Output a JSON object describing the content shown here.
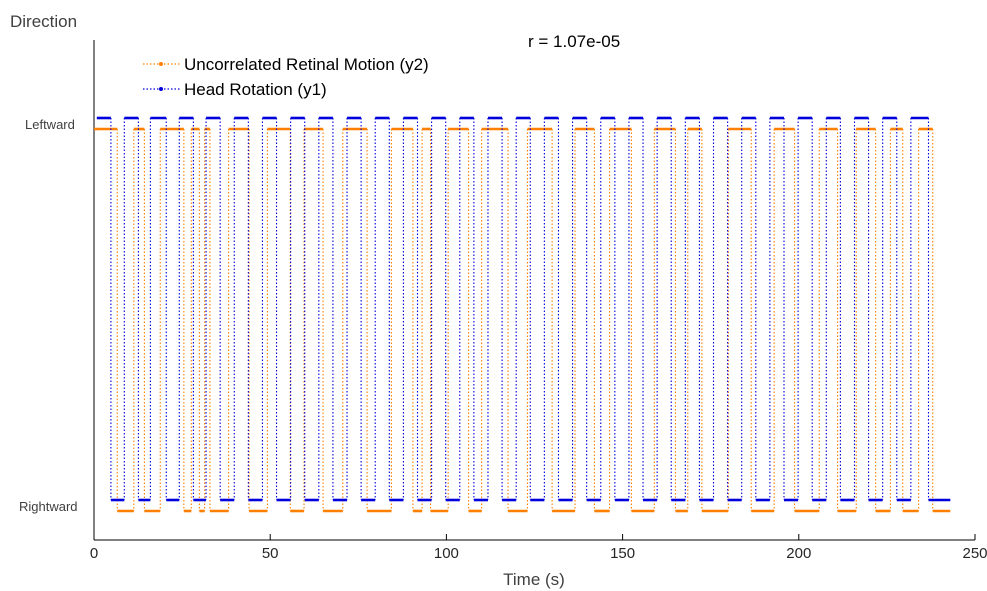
{
  "chart_data": {
    "type": "line",
    "title": "",
    "annotation": "r = 1.07e-05",
    "xlabel": "Time (s)",
    "ylabel": "Direction",
    "xlim": [
      0,
      250
    ],
    "x_ticks": [
      0,
      50,
      100,
      150,
      200,
      250
    ],
    "y_categories": [
      "Rightward",
      "Leftward"
    ],
    "grid": false,
    "legend_position": "top-left",
    "colors": {
      "y1": "#0000dd",
      "y2": "#ff8000"
    },
    "series": [
      {
        "name": "Uncorrelated Retinal Motion (y2)",
        "key": "y2",
        "segments": [
          [
            0,
            1.3,
            "L"
          ],
          [
            1.3,
            6.6,
            "L"
          ],
          [
            6.6,
            11.3,
            "R"
          ],
          [
            11.3,
            14.3,
            "L"
          ],
          [
            14.3,
            18.8,
            "R"
          ],
          [
            18.8,
            25.5,
            "L"
          ],
          [
            25.5,
            27.6,
            "R"
          ],
          [
            27.6,
            29.9,
            "L"
          ],
          [
            29.9,
            31.4,
            "R"
          ],
          [
            31.4,
            32.9,
            "L"
          ],
          [
            32.9,
            38.2,
            "R"
          ],
          [
            38.2,
            44.0,
            "L"
          ],
          [
            44.0,
            49.2,
            "R"
          ],
          [
            49.2,
            55.7,
            "L"
          ],
          [
            55.7,
            59.6,
            "R"
          ],
          [
            59.6,
            65.0,
            "L"
          ],
          [
            65.0,
            70.6,
            "R"
          ],
          [
            70.6,
            77.5,
            "L"
          ],
          [
            77.5,
            84.4,
            "R"
          ],
          [
            84.4,
            90.5,
            "L"
          ],
          [
            90.5,
            93.1,
            "R"
          ],
          [
            93.1,
            95.5,
            "L"
          ],
          [
            95.5,
            100.5,
            "R"
          ],
          [
            100.5,
            106.3,
            "L"
          ],
          [
            106.3,
            110.0,
            "R"
          ],
          [
            110.0,
            117.5,
            "L"
          ],
          [
            117.5,
            123.0,
            "R"
          ],
          [
            123.0,
            130.0,
            "L"
          ],
          [
            130.0,
            136.5,
            "R"
          ],
          [
            136.5,
            142.0,
            "L"
          ],
          [
            142.0,
            146.3,
            "R"
          ],
          [
            146.3,
            152.5,
            "L"
          ],
          [
            152.5,
            159.0,
            "R"
          ],
          [
            159.0,
            165.0,
            "L"
          ],
          [
            165.0,
            168.5,
            "R"
          ],
          [
            168.5,
            172.5,
            "L"
          ],
          [
            172.5,
            180.0,
            "R"
          ],
          [
            180.0,
            186.5,
            "L"
          ],
          [
            186.5,
            193.0,
            "R"
          ],
          [
            193.0,
            198.8,
            "L"
          ],
          [
            198.8,
            205.8,
            "R"
          ],
          [
            205.8,
            211.0,
            "L"
          ],
          [
            211.0,
            216.3,
            "R"
          ],
          [
            216.3,
            221.8,
            "L"
          ],
          [
            221.8,
            226.0,
            "R"
          ],
          [
            226.0,
            229.5,
            "L"
          ],
          [
            229.5,
            234.0,
            "R"
          ],
          [
            234.0,
            238.0,
            "L"
          ],
          [
            238.0,
            243.0,
            "R"
          ]
        ]
      },
      {
        "name": "Head Rotation (y1)",
        "key": "y1",
        "segments": [
          [
            0.8,
            4.8,
            "L"
          ],
          [
            4.8,
            8.6,
            "R"
          ],
          [
            8.6,
            12.6,
            "L"
          ],
          [
            12.6,
            16.0,
            "R"
          ],
          [
            16.0,
            20.5,
            "L"
          ],
          [
            20.5,
            24.2,
            "R"
          ],
          [
            24.2,
            28.2,
            "L"
          ],
          [
            28.2,
            31.8,
            "R"
          ],
          [
            31.8,
            35.8,
            "L"
          ],
          [
            35.8,
            39.8,
            "R"
          ],
          [
            39.8,
            43.8,
            "L"
          ],
          [
            43.8,
            47.8,
            "R"
          ],
          [
            47.8,
            51.8,
            "L"
          ],
          [
            51.8,
            55.8,
            "R"
          ],
          [
            55.8,
            59.8,
            "L"
          ],
          [
            59.8,
            63.8,
            "R"
          ],
          [
            63.8,
            67.8,
            "L"
          ],
          [
            67.8,
            71.8,
            "R"
          ],
          [
            71.8,
            75.8,
            "L"
          ],
          [
            75.8,
            79.8,
            "R"
          ],
          [
            79.8,
            83.8,
            "L"
          ],
          [
            83.8,
            87.8,
            "R"
          ],
          [
            87.8,
            91.8,
            "L"
          ],
          [
            91.8,
            95.8,
            "R"
          ],
          [
            95.8,
            99.8,
            "L"
          ],
          [
            99.8,
            103.8,
            "R"
          ],
          [
            103.8,
            107.8,
            "L"
          ],
          [
            107.8,
            111.8,
            "R"
          ],
          [
            111.8,
            115.8,
            "L"
          ],
          [
            115.8,
            119.8,
            "R"
          ],
          [
            119.8,
            123.8,
            "L"
          ],
          [
            123.8,
            127.8,
            "R"
          ],
          [
            127.8,
            131.8,
            "L"
          ],
          [
            131.8,
            135.8,
            "R"
          ],
          [
            135.8,
            139.8,
            "L"
          ],
          [
            139.8,
            143.8,
            "R"
          ],
          [
            143.8,
            147.8,
            "L"
          ],
          [
            147.8,
            151.8,
            "R"
          ],
          [
            151.8,
            155.8,
            "L"
          ],
          [
            155.8,
            159.8,
            "R"
          ],
          [
            159.8,
            163.8,
            "L"
          ],
          [
            163.8,
            167.8,
            "R"
          ],
          [
            167.8,
            171.8,
            "L"
          ],
          [
            171.8,
            175.8,
            "R"
          ],
          [
            175.8,
            179.8,
            "L"
          ],
          [
            179.8,
            183.8,
            "R"
          ],
          [
            183.8,
            187.8,
            "L"
          ],
          [
            187.8,
            191.8,
            "R"
          ],
          [
            191.8,
            195.8,
            "L"
          ],
          [
            195.8,
            199.8,
            "R"
          ],
          [
            199.8,
            203.8,
            "L"
          ],
          [
            203.8,
            207.8,
            "R"
          ],
          [
            207.8,
            211.8,
            "L"
          ],
          [
            211.8,
            215.8,
            "R"
          ],
          [
            215.8,
            219.8,
            "L"
          ],
          [
            219.8,
            223.8,
            "R"
          ],
          [
            223.8,
            227.8,
            "L"
          ],
          [
            227.8,
            231.8,
            "R"
          ],
          [
            231.8,
            236.8,
            "L"
          ],
          [
            236.8,
            243.0,
            "R"
          ]
        ]
      }
    ]
  }
}
